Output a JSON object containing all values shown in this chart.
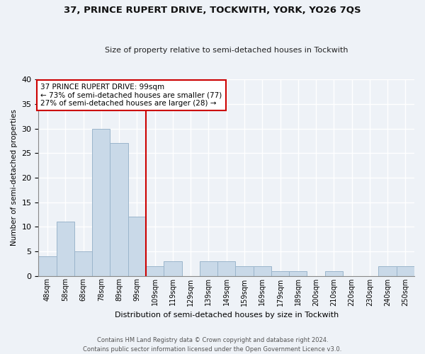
{
  "title1": "37, PRINCE RUPERT DRIVE, TOCKWITH, YORK, YO26 7QS",
  "title2": "Size of property relative to semi-detached houses in Tockwith",
  "xlabel": "Distribution of semi-detached houses by size in Tockwith",
  "ylabel": "Number of semi-detached properties",
  "bar_labels": [
    "48sqm",
    "58sqm",
    "68sqm",
    "78sqm",
    "89sqm",
    "99sqm",
    "109sqm",
    "119sqm",
    "129sqm",
    "139sqm",
    "149sqm",
    "159sqm",
    "169sqm",
    "179sqm",
    "189sqm",
    "200sqm",
    "210sqm",
    "220sqm",
    "230sqm",
    "240sqm",
    "250sqm"
  ],
  "bar_values": [
    4,
    11,
    5,
    30,
    27,
    12,
    2,
    3,
    0,
    3,
    3,
    2,
    2,
    1,
    1,
    0,
    1,
    0,
    0,
    2,
    2
  ],
  "bar_color": "#c9d9e8",
  "bar_edge_color": "#9bb5cb",
  "vline_color": "#cc0000",
  "annotation_text": "37 PRINCE RUPERT DRIVE: 99sqm\n← 73% of semi-detached houses are smaller (77)\n27% of semi-detached houses are larger (28) →",
  "annotation_box_color": "#ffffff",
  "annotation_box_edge": "#cc0000",
  "ylim": [
    0,
    40
  ],
  "yticks": [
    0,
    5,
    10,
    15,
    20,
    25,
    30,
    35,
    40
  ],
  "footer": "Contains HM Land Registry data © Crown copyright and database right 2024.\nContains public sector information licensed under the Open Government Licence v3.0.",
  "background_color": "#eef2f7",
  "grid_color": "#ffffff",
  "vline_index": 5.5
}
